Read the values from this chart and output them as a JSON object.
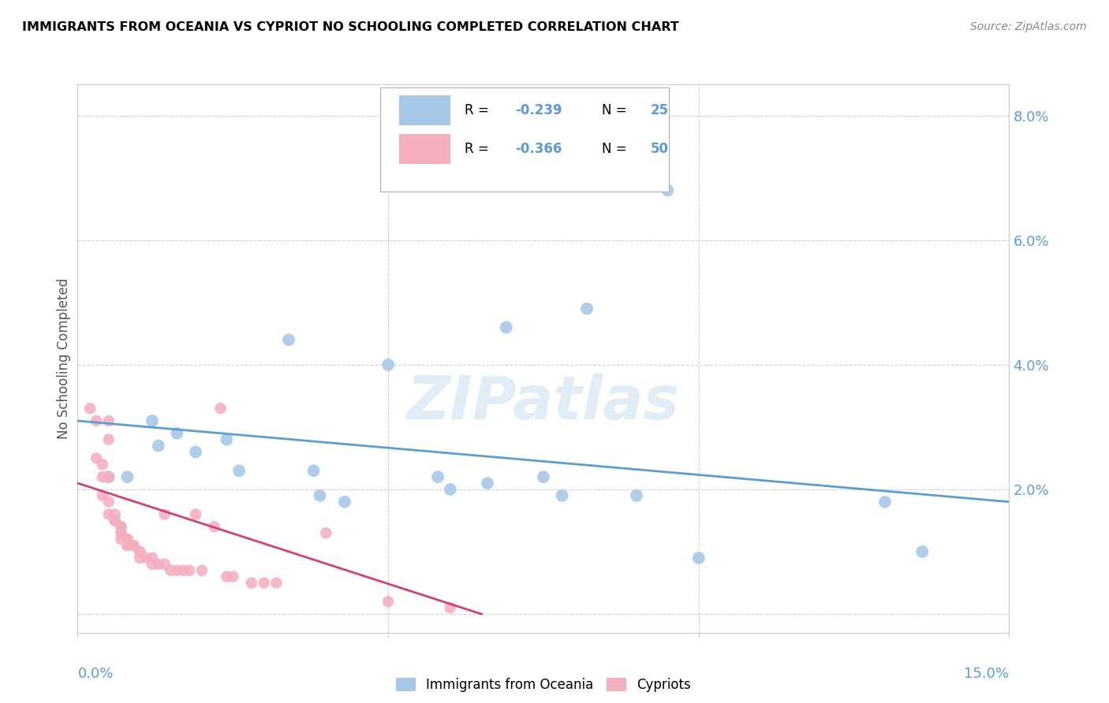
{
  "title": "IMMIGRANTS FROM OCEANIA VS CYPRIOT NO SCHOOLING COMPLETED CORRELATION CHART",
  "source": "Source: ZipAtlas.com",
  "ylabel": "No Schooling Completed",
  "legend_label1": "Immigrants from Oceania",
  "legend_label2": "Cypriots",
  "watermark": "ZIPatlas",
  "blue_color": "#a8c8e8",
  "pink_color": "#f5b0c0",
  "blue_line_color": "#5a9fd4",
  "pink_line_color": "#d44070",
  "r1": "-0.239",
  "n1": "25",
  "r2": "-0.366",
  "n2": "50",
  "label_color": "#5b9bd5",
  "x_range": [
    0.0,
    0.15
  ],
  "y_range": [
    -0.003,
    0.085
  ],
  "y_ticks": [
    0.0,
    0.02,
    0.04,
    0.06,
    0.08
  ],
  "y_tick_labels": [
    "",
    "2.0%",
    "4.0%",
    "6.0%",
    "8.0%"
  ],
  "x_ticks": [
    0.0,
    0.05,
    0.1,
    0.15
  ],
  "blue_scatter": [
    [
      0.005,
      0.022
    ],
    [
      0.008,
      0.022
    ],
    [
      0.012,
      0.031
    ],
    [
      0.013,
      0.027
    ],
    [
      0.016,
      0.029
    ],
    [
      0.019,
      0.026
    ],
    [
      0.024,
      0.028
    ],
    [
      0.026,
      0.023
    ],
    [
      0.034,
      0.044
    ],
    [
      0.038,
      0.023
    ],
    [
      0.039,
      0.019
    ],
    [
      0.043,
      0.018
    ],
    [
      0.05,
      0.04
    ],
    [
      0.058,
      0.022
    ],
    [
      0.06,
      0.02
    ],
    [
      0.066,
      0.021
    ],
    [
      0.069,
      0.046
    ],
    [
      0.075,
      0.022
    ],
    [
      0.078,
      0.019
    ],
    [
      0.082,
      0.049
    ],
    [
      0.09,
      0.019
    ],
    [
      0.095,
      0.068
    ],
    [
      0.1,
      0.009
    ],
    [
      0.13,
      0.018
    ],
    [
      0.136,
      0.01
    ]
  ],
  "pink_scatter": [
    [
      0.002,
      0.033
    ],
    [
      0.003,
      0.031
    ],
    [
      0.003,
      0.025
    ],
    [
      0.004,
      0.024
    ],
    [
      0.004,
      0.022
    ],
    [
      0.004,
      0.019
    ],
    [
      0.005,
      0.031
    ],
    [
      0.005,
      0.028
    ],
    [
      0.005,
      0.022
    ],
    [
      0.005,
      0.018
    ],
    [
      0.005,
      0.016
    ],
    [
      0.006,
      0.016
    ],
    [
      0.006,
      0.015
    ],
    [
      0.006,
      0.015
    ],
    [
      0.007,
      0.014
    ],
    [
      0.007,
      0.014
    ],
    [
      0.007,
      0.013
    ],
    [
      0.007,
      0.013
    ],
    [
      0.007,
      0.012
    ],
    [
      0.008,
      0.012
    ],
    [
      0.008,
      0.012
    ],
    [
      0.008,
      0.011
    ],
    [
      0.008,
      0.011
    ],
    [
      0.009,
      0.011
    ],
    [
      0.009,
      0.011
    ],
    [
      0.01,
      0.01
    ],
    [
      0.01,
      0.01
    ],
    [
      0.01,
      0.009
    ],
    [
      0.011,
      0.009
    ],
    [
      0.012,
      0.009
    ],
    [
      0.012,
      0.008
    ],
    [
      0.013,
      0.008
    ],
    [
      0.014,
      0.008
    ],
    [
      0.014,
      0.016
    ],
    [
      0.015,
      0.007
    ],
    [
      0.016,
      0.007
    ],
    [
      0.017,
      0.007
    ],
    [
      0.018,
      0.007
    ],
    [
      0.019,
      0.016
    ],
    [
      0.02,
      0.007
    ],
    [
      0.022,
      0.014
    ],
    [
      0.023,
      0.033
    ],
    [
      0.024,
      0.006
    ],
    [
      0.025,
      0.006
    ],
    [
      0.028,
      0.005
    ],
    [
      0.03,
      0.005
    ],
    [
      0.032,
      0.005
    ],
    [
      0.04,
      0.013
    ],
    [
      0.05,
      0.002
    ],
    [
      0.06,
      0.001
    ]
  ],
  "blue_trendline": [
    [
      0.0,
      0.031
    ],
    [
      0.15,
      0.018
    ]
  ],
  "pink_trendline": [
    [
      0.0,
      0.021
    ],
    [
      0.065,
      0.0
    ]
  ]
}
